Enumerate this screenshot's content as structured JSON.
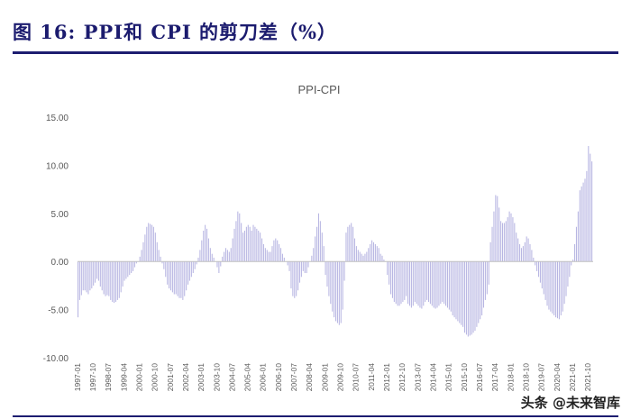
{
  "figure_title": "图 16: PPI和 CPI 的剪刀差（%）",
  "watermark": "头条 @未来智库",
  "colors": {
    "bar": "#b7b5e2",
    "axis": "#bfbfbf",
    "title": "#1b1b6e",
    "tick": "#595959"
  },
  "chart_data": {
    "type": "bar",
    "title": "PPI-CPI",
    "xlabel": "",
    "ylabel": "",
    "ylim": [
      -10,
      15
    ],
    "yticks": [
      "15.00",
      "10.00",
      "5.00",
      "0.00",
      "-5.00",
      "-10.00"
    ],
    "ytick_values": [
      15,
      10,
      5,
      0,
      -5,
      -10
    ],
    "xticks": [
      "1997-01",
      "1997-10",
      "1998-07",
      "1999-04",
      "2000-01",
      "2000-10",
      "2001-07",
      "2002-04",
      "2003-01",
      "2003-10",
      "2004-07",
      "2005-04",
      "2006-01",
      "2006-10",
      "2007-07",
      "2008-04",
      "2009-01",
      "2009-10",
      "2010-07",
      "2011-04",
      "2012-01",
      "2012-10",
      "2013-07",
      "2014-04",
      "2015-01",
      "2015-10",
      "2016-07",
      "2017-04",
      "2018-01",
      "2018-10",
      "2019-07",
      "2020-04",
      "2021-01",
      "2021-10"
    ],
    "frequency": "monthly",
    "start": "1997-01",
    "end": "2021-12",
    "series": [
      {
        "values": [
          -5.8,
          -4.0,
          -3.5,
          -3.0,
          -3.0,
          -3.2,
          -3.4,
          -3.0,
          -2.8,
          -2.5,
          -2.2,
          -1.8,
          -2.0,
          -2.6,
          -3.0,
          -3.4,
          -3.6,
          -3.5,
          -3.6,
          -4.0,
          -4.2,
          -4.3,
          -4.2,
          -4.0,
          -3.8,
          -3.2,
          -2.6,
          -2.0,
          -1.8,
          -1.6,
          -1.4,
          -1.2,
          -1.0,
          -0.6,
          -0.2,
          0.0,
          0.5,
          1.2,
          2.0,
          2.8,
          3.6,
          4.0,
          3.9,
          3.8,
          3.6,
          3.0,
          2.0,
          1.2,
          0.5,
          -0.2,
          -0.8,
          -1.6,
          -2.4,
          -2.8,
          -3.0,
          -3.2,
          -3.4,
          -3.4,
          -3.6,
          -3.8,
          -3.8,
          -4.0,
          -3.6,
          -3.0,
          -2.4,
          -2.0,
          -1.6,
          -1.2,
          -0.8,
          -0.3,
          0.4,
          1.2,
          2.2,
          3.2,
          3.8,
          3.4,
          2.4,
          1.4,
          0.8,
          0.4,
          0.0,
          -0.6,
          -1.2,
          -0.5,
          0.5,
          1.0,
          1.4,
          1.2,
          1.0,
          1.4,
          2.4,
          3.4,
          4.2,
          5.2,
          5.0,
          4.0,
          3.0,
          3.2,
          3.6,
          3.8,
          3.6,
          3.2,
          3.8,
          3.6,
          3.4,
          3.2,
          3.0,
          2.4,
          1.8,
          1.4,
          1.2,
          1.0,
          1.0,
          1.6,
          2.2,
          2.4,
          2.2,
          1.8,
          1.4,
          0.8,
          0.4,
          0.0,
          -0.4,
          -1.0,
          -2.8,
          -3.6,
          -3.8,
          -3.6,
          -3.0,
          -2.2,
          -1.6,
          -1.0,
          -1.2,
          -1.2,
          -0.6,
          0.0,
          0.6,
          1.4,
          2.6,
          3.6,
          5.0,
          4.2,
          3.0,
          1.6,
          -1.4,
          -2.6,
          -3.6,
          -4.4,
          -5.2,
          -5.8,
          -6.2,
          -6.4,
          -6.6,
          -6.4,
          -5.0,
          -2.0,
          3.0,
          3.6,
          3.8,
          4.0,
          3.6,
          2.4,
          1.6,
          1.2,
          1.0,
          0.8,
          0.6,
          0.8,
          1.0,
          1.4,
          1.8,
          2.2,
          2.0,
          1.8,
          1.6,
          1.4,
          0.8,
          0.6,
          0.2,
          0.0,
          -1.4,
          -2.4,
          -3.4,
          -3.8,
          -4.2,
          -4.4,
          -4.6,
          -4.6,
          -4.4,
          -4.2,
          -4.0,
          -3.6,
          -4.4,
          -4.6,
          -4.8,
          -4.6,
          -4.2,
          -4.4,
          -4.6,
          -4.8,
          -4.9,
          -4.6,
          -4.2,
          -4.0,
          -4.2,
          -4.4,
          -4.6,
          -4.8,
          -4.9,
          -4.8,
          -4.6,
          -4.4,
          -4.2,
          -4.4,
          -4.6,
          -4.8,
          -5.0,
          -5.2,
          -5.6,
          -5.8,
          -6.0,
          -6.2,
          -6.4,
          -6.6,
          -6.8,
          -7.4,
          -7.6,
          -7.8,
          -7.7,
          -7.6,
          -7.4,
          -7.2,
          -6.8,
          -6.4,
          -6.0,
          -5.6,
          -4.8,
          -4.0,
          -3.4,
          -2.4,
          2.0,
          3.6,
          5.2,
          6.9,
          6.8,
          5.6,
          4.2,
          4.0,
          4.0,
          4.2,
          4.6,
          5.2,
          5.0,
          4.6,
          4.0,
          3.0,
          2.4,
          1.8,
          1.4,
          1.6,
          2.0,
          2.6,
          2.4,
          1.8,
          1.2,
          0.4,
          -0.4,
          -1.0,
          -1.6,
          -2.2,
          -2.8,
          -3.4,
          -4.0,
          -4.6,
          -5.0,
          -5.2,
          -5.4,
          -5.6,
          -5.8,
          -5.9,
          -6.0,
          -5.6,
          -5.2,
          -4.4,
          -3.6,
          -2.6,
          -1.6,
          -0.4,
          0.2,
          1.8,
          3.6,
          5.2,
          7.4,
          7.8,
          8.2,
          8.6,
          9.4,
          12.0,
          11.2,
          10.4
        ]
      }
    ]
  }
}
